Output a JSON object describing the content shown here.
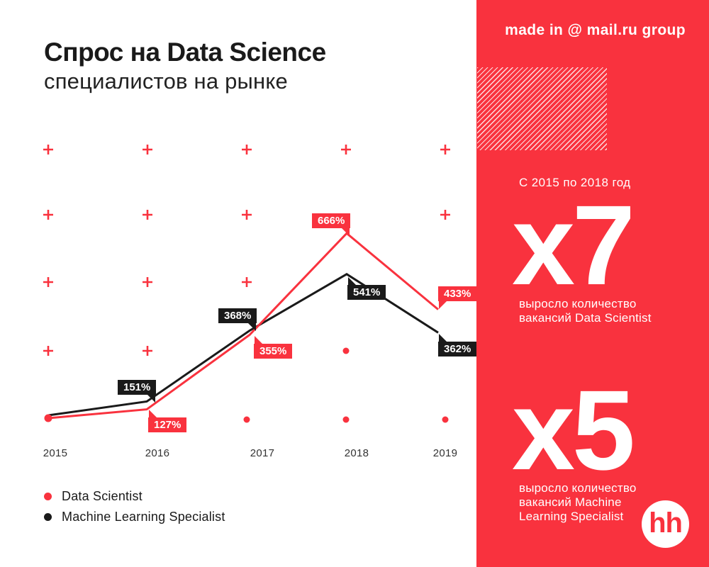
{
  "header": {
    "title_bold": "Спрос на Data Science",
    "title_regular": "специалистов на рынке"
  },
  "chart_data": {
    "type": "line",
    "categories": [
      "2015",
      "2016",
      "2017",
      "2018",
      "2019"
    ],
    "series": [
      {
        "name": "Data Scientist",
        "color": "#f9323e",
        "values": [
          100,
          127,
          355,
          666,
          433
        ],
        "point_labels": [
          "",
          "127%",
          "355%",
          "666%",
          "433%"
        ]
      },
      {
        "name": "Machine Learning Specialist",
        "color": "#1a1a1a",
        "values": [
          100,
          151,
          368,
          541,
          362
        ],
        "point_labels": [
          "",
          "151%",
          "368%",
          "541%",
          "362%"
        ]
      }
    ],
    "unit": "%",
    "baseline_value": 100,
    "xlabel": "",
    "ylabel": "",
    "grid": "decorative red plus/dot pattern, no axes",
    "legend_position": "bottom-left"
  },
  "legend": {
    "items": [
      {
        "label": "Data Scientist",
        "color": "#f9323e"
      },
      {
        "label": "Machine Learning Specialist",
        "color": "#1a1a1a"
      }
    ]
  },
  "sidebar": {
    "bg_color": "#f9323e",
    "credit": "made in @ mail.ru group",
    "period": "С 2015 по 2018 год",
    "stat1": {
      "multiplier": "x7",
      "caption": "выросло количество вакансий Data Scientist"
    },
    "stat2": {
      "multiplier": "x5",
      "caption": "выросло количество вакансий Machine Learning Specialist"
    },
    "logo_text": "hh"
  }
}
